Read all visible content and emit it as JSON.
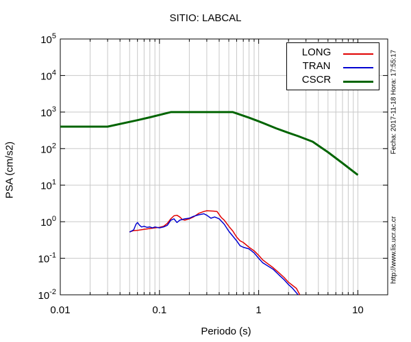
{
  "chart_data": {
    "type": "line",
    "title": "SITIO: LABCAL",
    "xlabel": "Periodo (s)",
    "ylabel": "PSA (cm/s2)",
    "x_scale": "log",
    "y_scale": "log",
    "xlim": [
      0.01,
      20
    ],
    "ylim": [
      0.01,
      100000
    ],
    "grid": true,
    "legend_position": "top-right",
    "x_ticks": [
      {
        "value": 0.01,
        "label": "0.01"
      },
      {
        "value": 0.1,
        "label": "0.1"
      },
      {
        "value": 1,
        "label": "1"
      },
      {
        "value": 10,
        "label": "10"
      }
    ],
    "y_ticks": [
      {
        "value": 0.01,
        "base": "10",
        "exp": "-2"
      },
      {
        "value": 0.1,
        "base": "10",
        "exp": "-1"
      },
      {
        "value": 1,
        "base": "10",
        "exp": "0"
      },
      {
        "value": 10,
        "base": "10",
        "exp": "1"
      },
      {
        "value": 100,
        "base": "10",
        "exp": "2"
      },
      {
        "value": 1000,
        "base": "10",
        "exp": "3"
      },
      {
        "value": 10000,
        "base": "10",
        "exp": "4"
      },
      {
        "value": 100000,
        "base": "10",
        "exp": "5"
      }
    ],
    "series": [
      {
        "name": "LONG",
        "color": "#e00000",
        "width": 1.5,
        "points": [
          [
            0.05,
            0.53
          ],
          [
            0.055,
            0.57
          ],
          [
            0.06,
            0.58
          ],
          [
            0.065,
            0.6
          ],
          [
            0.07,
            0.62
          ],
          [
            0.08,
            0.65
          ],
          [
            0.09,
            0.68
          ],
          [
            0.1,
            0.7
          ],
          [
            0.11,
            0.75
          ],
          [
            0.12,
            0.9
          ],
          [
            0.13,
            1.2
          ],
          [
            0.14,
            1.45
          ],
          [
            0.15,
            1.5
          ],
          [
            0.16,
            1.35
          ],
          [
            0.17,
            1.15
          ],
          [
            0.18,
            1.1
          ],
          [
            0.2,
            1.2
          ],
          [
            0.22,
            1.35
          ],
          [
            0.25,
            1.7
          ],
          [
            0.28,
            1.9
          ],
          [
            0.3,
            2.0
          ],
          [
            0.35,
            1.95
          ],
          [
            0.38,
            1.9
          ],
          [
            0.42,
            1.3
          ],
          [
            0.45,
            1.1
          ],
          [
            0.5,
            0.75
          ],
          [
            0.55,
            0.55
          ],
          [
            0.6,
            0.38
          ],
          [
            0.65,
            0.3
          ],
          [
            0.7,
            0.27
          ],
          [
            0.8,
            0.2
          ],
          [
            0.9,
            0.16
          ],
          [
            1.0,
            0.12
          ],
          [
            1.1,
            0.09
          ],
          [
            1.2,
            0.075
          ],
          [
            1.4,
            0.055
          ],
          [
            1.6,
            0.04
          ],
          [
            1.8,
            0.03
          ],
          [
            2.0,
            0.022
          ],
          [
            2.2,
            0.018
          ],
          [
            2.4,
            0.015
          ],
          [
            2.6,
            0.01
          ]
        ]
      },
      {
        "name": "TRAN",
        "color": "#0000d0",
        "width": 1.5,
        "points": [
          [
            0.05,
            0.52
          ],
          [
            0.055,
            0.6
          ],
          [
            0.058,
            0.85
          ],
          [
            0.06,
            0.95
          ],
          [
            0.063,
            0.8
          ],
          [
            0.066,
            0.72
          ],
          [
            0.07,
            0.75
          ],
          [
            0.075,
            0.7
          ],
          [
            0.08,
            0.72
          ],
          [
            0.085,
            0.68
          ],
          [
            0.09,
            0.72
          ],
          [
            0.1,
            0.68
          ],
          [
            0.11,
            0.72
          ],
          [
            0.12,
            0.8
          ],
          [
            0.13,
            1.1
          ],
          [
            0.14,
            1.2
          ],
          [
            0.15,
            0.95
          ],
          [
            0.16,
            1.1
          ],
          [
            0.18,
            1.2
          ],
          [
            0.2,
            1.25
          ],
          [
            0.22,
            1.4
          ],
          [
            0.25,
            1.55
          ],
          [
            0.28,
            1.65
          ],
          [
            0.3,
            1.5
          ],
          [
            0.33,
            1.25
          ],
          [
            0.36,
            1.35
          ],
          [
            0.4,
            1.2
          ],
          [
            0.45,
            0.85
          ],
          [
            0.5,
            0.55
          ],
          [
            0.55,
            0.4
          ],
          [
            0.6,
            0.3
          ],
          [
            0.65,
            0.22
          ],
          [
            0.7,
            0.2
          ],
          [
            0.8,
            0.18
          ],
          [
            0.9,
            0.14
          ],
          [
            1.0,
            0.1
          ],
          [
            1.1,
            0.075
          ],
          [
            1.2,
            0.065
          ],
          [
            1.4,
            0.05
          ],
          [
            1.6,
            0.035
          ],
          [
            1.8,
            0.026
          ],
          [
            2.0,
            0.019
          ],
          [
            2.2,
            0.015
          ],
          [
            2.5,
            0.01
          ]
        ]
      },
      {
        "name": "CSCR",
        "color": "#006400",
        "width": 3,
        "points": [
          [
            0.01,
            400
          ],
          [
            0.03,
            400
          ],
          [
            0.06,
            600
          ],
          [
            0.08,
            720
          ],
          [
            0.13,
            1000
          ],
          [
            0.55,
            1000
          ],
          [
            0.8,
            700
          ],
          [
            1.0,
            560
          ],
          [
            1.5,
            360
          ],
          [
            2.0,
            270
          ],
          [
            2.5,
            220
          ],
          [
            3.5,
            155
          ],
          [
            5.0,
            80
          ],
          [
            7.0,
            40
          ],
          [
            10.0,
            19
          ]
        ]
      }
    ]
  },
  "side_text": {
    "date": "Fecha: 2017-11-18 Hora: 17:55:17",
    "url": "http://www.lis.ucr.ac.cr"
  }
}
